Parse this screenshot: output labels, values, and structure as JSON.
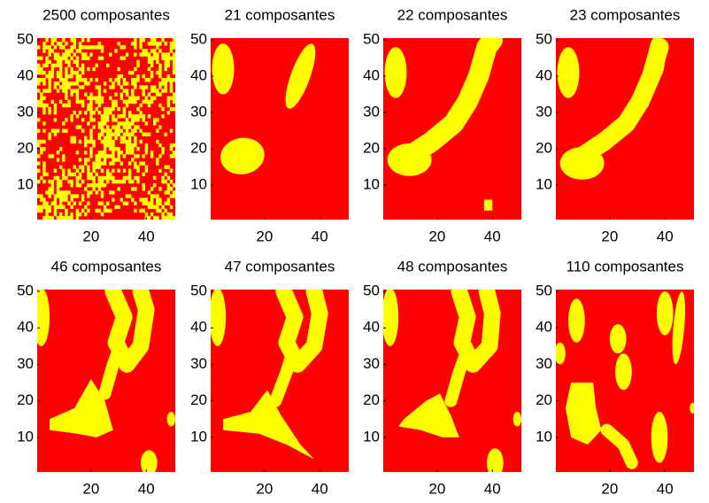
{
  "chart_data": [
    {
      "type": "image",
      "title": "2500 composantes",
      "xlim": [
        0.5,
        50.5
      ],
      "ylim": [
        0.5,
        50.5
      ],
      "xticks": [
        20,
        40
      ],
      "yticks": [
        10,
        20,
        30,
        40,
        50
      ],
      "background": "#ff0000",
      "foreground": "#ffff00"
    },
    {
      "type": "image",
      "title": "21 composantes",
      "xlim": [
        0.5,
        50.5
      ],
      "ylim": [
        0.5,
        50.5
      ],
      "xticks": [
        20,
        40
      ],
      "yticks": [
        10,
        20,
        30,
        40,
        50
      ],
      "background": "#ff0000",
      "foreground": "#ffff00"
    },
    {
      "type": "image",
      "title": "22 composantes",
      "xlim": [
        0.5,
        50.5
      ],
      "ylim": [
        0.5,
        50.5
      ],
      "xticks": [
        20,
        40
      ],
      "yticks": [
        10,
        20,
        30,
        40,
        50
      ],
      "background": "#ff0000",
      "foreground": "#ffff00"
    },
    {
      "type": "image",
      "title": "23 composantes",
      "xlim": [
        0.5,
        50.5
      ],
      "ylim": [
        0.5,
        50.5
      ],
      "xticks": [
        20,
        40
      ],
      "yticks": [
        10,
        20,
        30,
        40,
        50
      ],
      "background": "#ff0000",
      "foreground": "#ffff00"
    },
    {
      "type": "image",
      "title": "46 composantes",
      "xlim": [
        0.5,
        50.5
      ],
      "ylim": [
        0.5,
        50.5
      ],
      "xticks": [
        20,
        40
      ],
      "yticks": [
        10,
        20,
        30,
        40,
        50
      ],
      "background": "#ff0000",
      "foreground": "#ffff00"
    },
    {
      "type": "image",
      "title": "47 composantes",
      "xlim": [
        0.5,
        50.5
      ],
      "ylim": [
        0.5,
        50.5
      ],
      "xticks": [
        20,
        40
      ],
      "yticks": [
        10,
        20,
        30,
        40,
        50
      ],
      "background": "#ff0000",
      "foreground": "#ffff00"
    },
    {
      "type": "image",
      "title": "48 composantes",
      "xlim": [
        0.5,
        50.5
      ],
      "ylim": [
        0.5,
        50.5
      ],
      "xticks": [
        20,
        40
      ],
      "yticks": [
        10,
        20,
        30,
        40,
        50
      ],
      "background": "#ff0000",
      "foreground": "#ffff00"
    },
    {
      "type": "image",
      "title": "110 composantes",
      "xlim": [
        0.5,
        50.5
      ],
      "ylim": [
        0.5,
        50.5
      ],
      "xticks": [
        20,
        40
      ],
      "yticks": [
        10,
        20,
        30,
        40,
        50
      ],
      "background": "#ff0000",
      "foreground": "#ffff00"
    }
  ]
}
